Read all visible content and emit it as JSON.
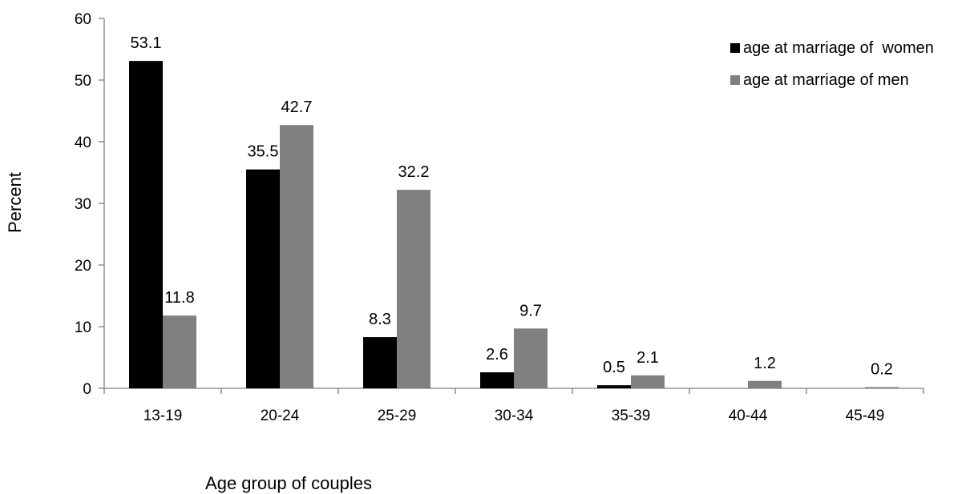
{
  "chart_data": {
    "type": "bar",
    "categories": [
      "13-19",
      "20-24",
      "25-29",
      "30-34",
      "35-39",
      "40-44",
      "45-49"
    ],
    "series": [
      {
        "name": "age at marriage of  women",
        "color": "#000000",
        "values": [
          53.1,
          35.5,
          8.3,
          2.6,
          0.5,
          0,
          0
        ],
        "labels": [
          "53.1",
          "35.5",
          "8.3",
          "2.6",
          "0.5",
          "",
          ""
        ]
      },
      {
        "name": "age at marriage of men",
        "color": "#808080",
        "values": [
          11.8,
          42.7,
          32.2,
          9.7,
          2.1,
          1.2,
          0.2
        ],
        "labels": [
          "11.8",
          "42.7",
          "32.2",
          "9.7",
          "2.1",
          "1.2",
          "0.2"
        ]
      }
    ],
    "xlabel": "Age group of couples",
    "ylabel": "Percent",
    "ylim": [
      0,
      60
    ],
    "yticks": [
      0,
      10,
      20,
      30,
      40,
      50,
      60
    ],
    "grid": false,
    "legend": "right"
  }
}
